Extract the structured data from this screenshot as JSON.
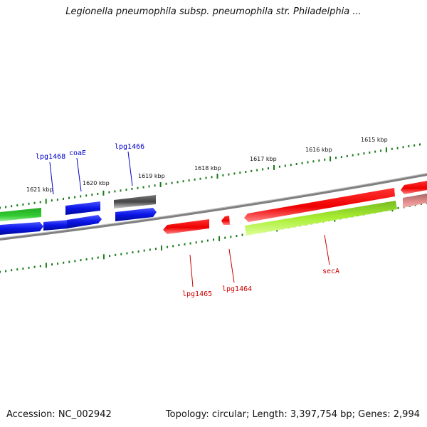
{
  "title": "Legionella pneumophila subsp. pneumophila str. Philadelphia ...",
  "footer": {
    "accession": "Accession: NC_002942",
    "summary": "Topology: circular; Length: 3,397,754 bp; Genes: 2,994"
  },
  "scale_labels": [
    "1621 kbp",
    "1620 kbp",
    "1619 kbp",
    "1618 kbp",
    "1617 kbp",
    "1616 kbp",
    "1615 kbp"
  ],
  "gene_labels": {
    "lpg1468": "lpg1468",
    "coaE": "coaE",
    "lpg1466": "lpg1466",
    "lpg1465": "lpg1465",
    "lpg1464": "lpg1464",
    "secA": "secA"
  },
  "colors": {
    "forward_label": "#0000cc",
    "reverse_label": "#cc0000",
    "tick": "#1a7a1a",
    "backbone": "#808080",
    "blue_gene": "#0a14e6",
    "red_gene": "#ee0000",
    "green_gene": "#22bb22",
    "gray_gene": "#555555",
    "lime_gene": "#a8ee22",
    "pink_gene": "#f08080"
  }
}
